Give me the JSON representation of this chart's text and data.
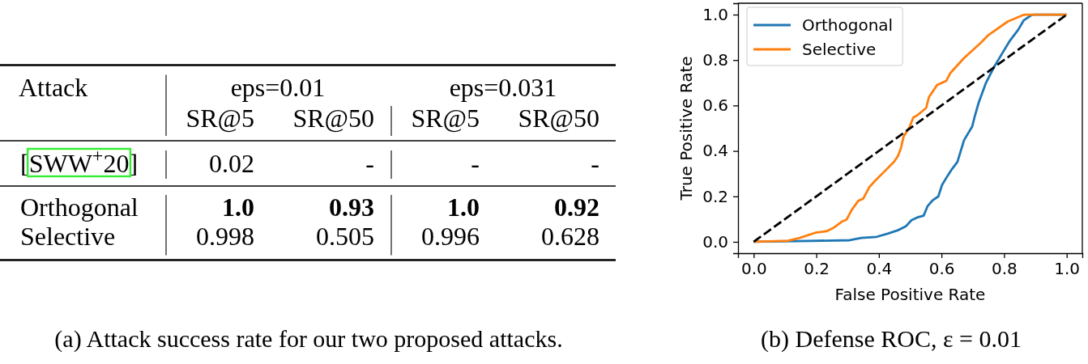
{
  "chart_data": [
    {
      "type": "other",
      "ylabel": "Attack",
      "categories": [
        "SR@5",
        "SR@50",
        "SR@5",
        "SR@50"
      ],
      "y_categories": [
        "[SWW$^{+}$20]",
        "Orthogonal",
        "Selective"
      ],
      "cell_labels": [
        [
          "0.02",
          "-",
          "-",
          "-"
        ],
        [
          "1.0",
          "0.93",
          "1.0",
          "0.92"
        ],
        [
          "0.998",
          "0.505",
          "0.996",
          "0.628"
        ]
      ],
      "annotations": [
        "eps=0.01",
        "eps=0.031",
        "(a) Attack success rate for our two proposed attacks."
      ]
    },
    {
      "type": "line",
      "xlabel": "False Positive Rate",
      "ylabel": "True Positive Rate",
      "annotations": [
        "(b) Defense ROC, ε = 0.01"
      ],
      "xlim": [
        -0.05,
        1.05
      ],
      "ylim": [
        -0.05,
        1.05
      ],
      "xticks": [
        {
          "value": 0,
          "label": "0.0"
        },
        0.2,
        0.4,
        0.6,
        0.8,
        {
          "value": 1,
          "label": "1.0"
        }
      ],
      "yticks": [
        {
          "value": 0,
          "label": "0.0"
        },
        0.2,
        0.4,
        0.6,
        0.8,
        {
          "value": 1,
          "label": "1.0"
        }
      ],
      "legend": "top left",
      "series": [
        {
          "name": "Orthogonal",
          "color": "#1f77b4",
          "x": [
            0,
            0.135,
            0.307,
            0.344,
            0.393,
            0.43,
            0.461,
            0.486,
            0.504,
            0.522,
            0.543,
            0.556,
            0.572,
            0.59,
            0.602,
            0.617,
            0.633,
            0.651,
            0.672,
            0.698,
            0.707,
            0.719,
            0.741,
            0.767,
            0.793,
            0.819,
            0.845,
            0.863,
            0.889,
            0.898,
            1.0
          ],
          "values": [
            0,
            0.003,
            0.007,
            0.017,
            0.022,
            0.037,
            0.051,
            0.068,
            0.095,
            0.107,
            0.115,
            0.158,
            0.183,
            0.2,
            0.251,
            0.285,
            0.319,
            0.352,
            0.447,
            0.507,
            0.556,
            0.613,
            0.696,
            0.767,
            0.827,
            0.886,
            0.933,
            0.975,
            0.999,
            1.0,
            1.0
          ]
        },
        {
          "name": "Selective",
          "color": "#ff7f0e",
          "x": [
            0,
            0.11,
            0.147,
            0.197,
            0.234,
            0.258,
            0.283,
            0.297,
            0.313,
            0.334,
            0.35,
            0.369,
            0.393,
            0.418,
            0.449,
            0.461,
            0.47,
            0.479,
            0.498,
            0.51,
            0.522,
            0.551,
            0.56,
            0.586,
            0.615,
            0.629,
            0.672,
            0.724,
            0.75,
            0.811,
            0.863,
            0.871,
            1.0
          ],
          "values": [
            0,
            0.005,
            0.017,
            0.04,
            0.047,
            0.064,
            0.09,
            0.098,
            0.14,
            0.18,
            0.19,
            0.24,
            0.276,
            0.31,
            0.353,
            0.378,
            0.41,
            0.463,
            0.505,
            0.547,
            0.556,
            0.589,
            0.637,
            0.69,
            0.708,
            0.744,
            0.809,
            0.874,
            0.91,
            0.969,
            0.999,
            1.0,
            1.0
          ]
        },
        {
          "color": "#000000",
          "line_style": "dashed",
          "x": [
            0,
            1
          ],
          "values": [
            0,
            1
          ]
        }
      ]
    }
  ]
}
